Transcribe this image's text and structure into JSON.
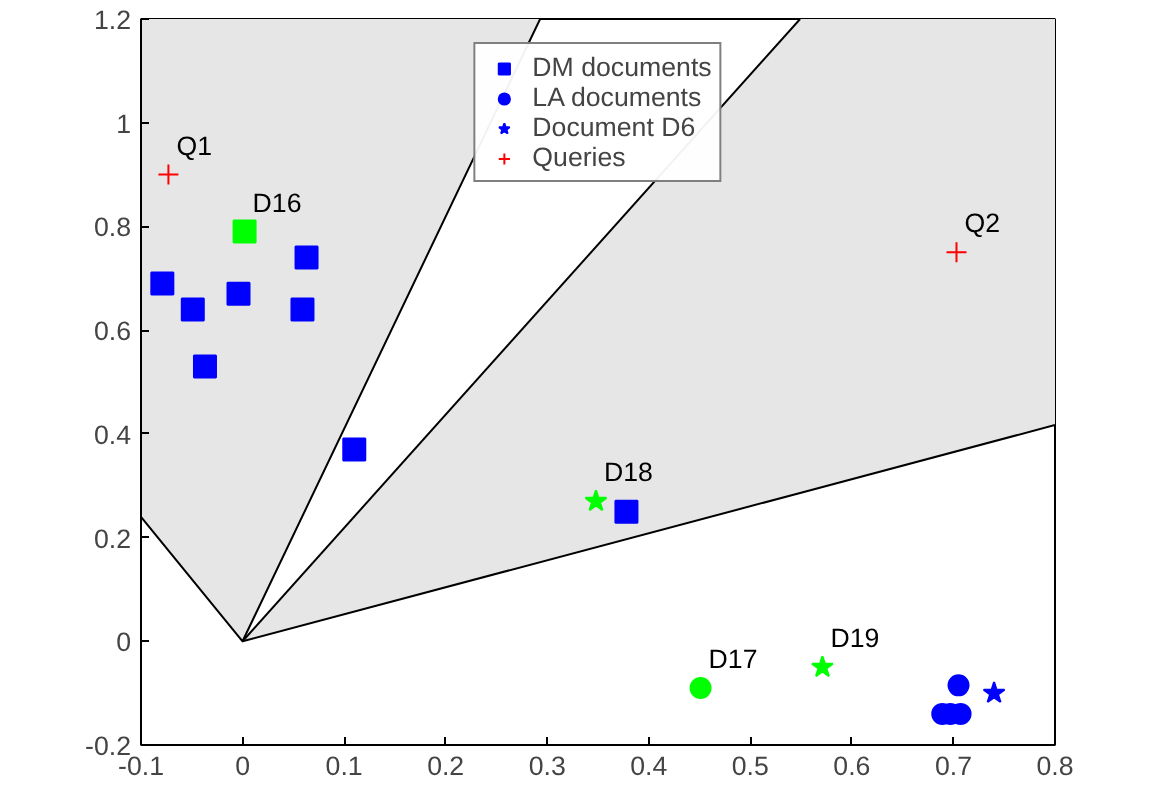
{
  "chart_data": {
    "type": "scatter",
    "xlim": [
      -0.1,
      0.8
    ],
    "ylim": [
      -0.2,
      1.2
    ],
    "xticks": [
      -0.1,
      0,
      0.1,
      0.2,
      0.3,
      0.4,
      0.5,
      0.6,
      0.7,
      0.8
    ],
    "yticks": [
      -0.2,
      0,
      0.2,
      0.4,
      0.6,
      0.8,
      1,
      1.2
    ],
    "grid": false,
    "legend": "top",
    "series": [
      {
        "type": "line",
        "color": "#000000",
        "marker": "none",
        "x": [
          -0.1,
          0,
          0.293
        ],
        "values": [
          0.24,
          0,
          1.2
        ],
        "lower": [
          0.24,
          0,
          1.2
        ],
        "upper": [
          1.2,
          1.2,
          1.2
        ]
      },
      {
        "type": "line",
        "color": "#000000",
        "marker": "none",
        "x": [
          0,
          0.549,
          0.8
        ],
        "values": [
          0,
          0.286,
          0.417
        ],
        "lower": [
          0,
          0.286,
          0.417
        ],
        "upper": [
          0,
          1.2,
          1.2
        ]
      },
      {
        "type": "line",
        "color": "#000000",
        "marker": "none",
        "x": [
          0,
          0.549
        ],
        "values": [
          0,
          1.2
        ]
      },
      {
        "name": "DM documents",
        "color": "#0000ff",
        "marker": "square",
        "x": [
          -0.079,
          -0.049,
          -0.004,
          0.063,
          0.059,
          -0.037,
          0.11,
          0.378
        ],
        "values": [
          0.69,
          0.64,
          0.67,
          0.74,
          0.64,
          0.53,
          0.37,
          0.25
        ]
      },
      {
        "name": "LA documents",
        "color": "#0000ff",
        "marker": "circle",
        "x": [
          0.705,
          0.689,
          0.697,
          0.707
        ],
        "values": [
          -0.085,
          -0.14,
          -0.14,
          -0.14
        ]
      },
      {
        "name": "Document D6",
        "color": "#0000ff",
        "marker": "star",
        "x": [
          0.74
        ],
        "values": [
          -0.1
        ]
      },
      {
        "name": "Queries",
        "color": "#ff0000",
        "marker": "cross",
        "x": [
          -0.073,
          0.703
        ],
        "values": [
          0.9,
          0.75
        ]
      },
      {
        "color": "#00ff00",
        "marker": "square",
        "x": [
          0.002
        ],
        "values": [
          0.79
        ]
      },
      {
        "color": "#00ff00",
        "marker": "circle",
        "x": [
          0.451
        ],
        "values": [
          -0.09
        ]
      },
      {
        "color": "#00ff00",
        "marker": "star",
        "x": [
          0.348,
          0.571
        ],
        "values": [
          0.27,
          -0.05
        ]
      }
    ],
    "annotations": [
      {
        "text": "Q1",
        "x": -0.073,
        "y": 0.9
      },
      {
        "text": "D16",
        "x": 0.002,
        "y": 0.79
      },
      {
        "text": "Q2",
        "x": 0.703,
        "y": 0.75
      },
      {
        "text": "D18",
        "x": 0.348,
        "y": 0.27
      },
      {
        "text": "D17",
        "x": 0.451,
        "y": -0.09
      },
      {
        "text": "D19",
        "x": 0.571,
        "y": -0.05
      }
    ]
  }
}
